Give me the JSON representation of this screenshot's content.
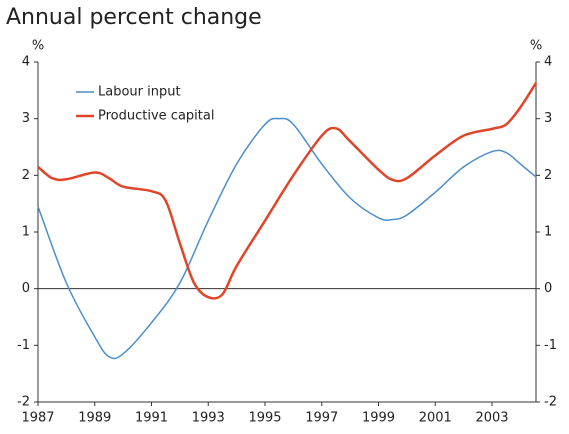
{
  "chart_data": {
    "type": "line",
    "title": "Annual percent change",
    "y_unit": "%",
    "y2_unit": "%",
    "xlim": [
      1987,
      2004.55
    ],
    "xticks": [
      1987,
      1989,
      1991,
      1993,
      1995,
      1997,
      1999,
      2001,
      2003
    ],
    "ylim": [
      -2,
      4
    ],
    "yticks": [
      4,
      3,
      2,
      1,
      0,
      -1,
      -2
    ],
    "y2lim": [
      -2,
      4
    ],
    "y2ticks": [
      4,
      3,
      2,
      1,
      0,
      -1,
      -2
    ],
    "legend": "upper left",
    "series": [
      {
        "name": "Labour input",
        "color": "#4a8fc9",
        "x": [
          1987,
          1988,
          1989,
          1989.5,
          1990,
          1991,
          1992,
          1993,
          1994,
          1995,
          1995.5,
          1996,
          1997,
          1998,
          1999,
          1999.5,
          2000,
          2001,
          2002,
          2003,
          2003.5,
          2004,
          2004.55
        ],
        "values": [
          1.45,
          0.1,
          -0.85,
          -1.2,
          -1.15,
          -0.6,
          0.1,
          1.2,
          2.2,
          2.9,
          3.0,
          2.9,
          2.2,
          1.6,
          1.25,
          1.22,
          1.3,
          1.7,
          2.15,
          2.42,
          2.4,
          2.2,
          1.97
        ]
      },
      {
        "name": "Productive capital",
        "color": "#e0452a",
        "x": [
          1987,
          1987.5,
          1988,
          1989,
          1989.5,
          1990,
          1991,
          1991.5,
          1992,
          1992.5,
          1993,
          1993.5,
          1994,
          1995,
          1996,
          1997,
          1997.5,
          1998,
          1999,
          1999.5,
          2000,
          2001,
          2002,
          2003,
          2003.5,
          2004,
          2004.55
        ],
        "values": [
          2.15,
          1.95,
          1.93,
          2.05,
          1.95,
          1.8,
          1.72,
          1.55,
          0.8,
          0.1,
          -0.15,
          -0.1,
          0.4,
          1.2,
          2.0,
          2.7,
          2.83,
          2.6,
          2.1,
          1.92,
          1.95,
          2.35,
          2.7,
          2.82,
          2.9,
          3.2,
          3.63
        ]
      }
    ]
  }
}
